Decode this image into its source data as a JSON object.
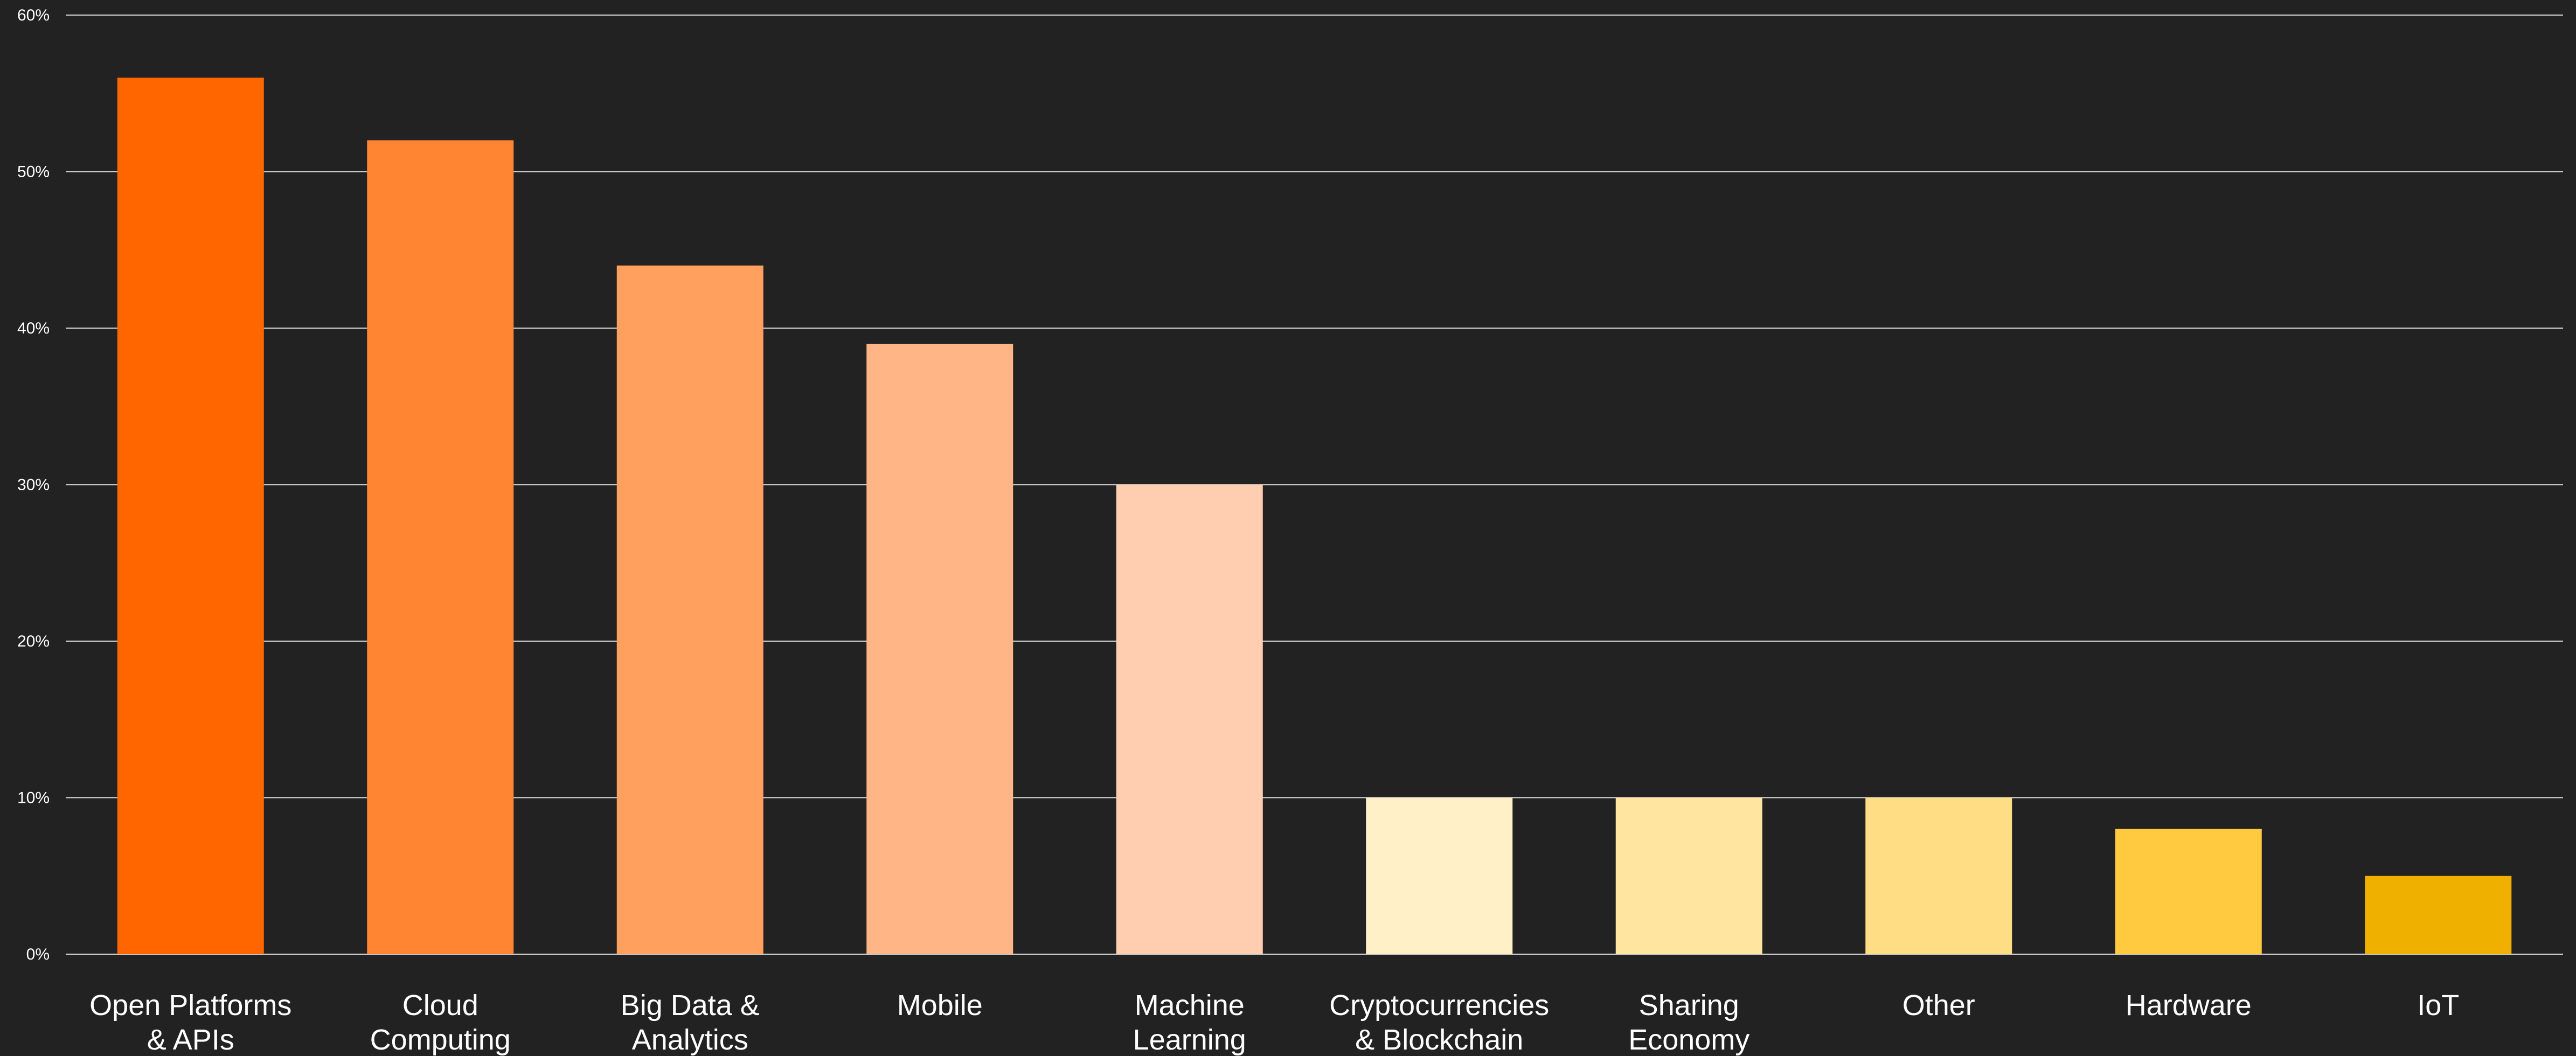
{
  "chart_data": {
    "type": "bar",
    "title": "",
    "xlabel": "",
    "ylabel": "",
    "ylim": [
      0,
      60
    ],
    "yticks": [
      "0%",
      "10%",
      "20%",
      "30%",
      "40%",
      "50%",
      "60%"
    ],
    "y_unit": "%",
    "grid": true,
    "legend": "none",
    "categories": [
      [
        "Open Platforms",
        "& APIs"
      ],
      [
        "Cloud",
        "Computing"
      ],
      [
        "Big Data &",
        "Analytics"
      ],
      [
        "Mobile"
      ],
      [
        "Machine",
        "Learning"
      ],
      [
        "Cryptocurrencies",
        "& Blockchain"
      ],
      [
        "Sharing",
        "Economy"
      ],
      [
        "Other"
      ],
      [
        "Hardware"
      ],
      [
        "IoT"
      ]
    ],
    "values": [
      56,
      52,
      44,
      39,
      30,
      10,
      10,
      10,
      8,
      5
    ],
    "colors": [
      "#ff6600",
      "#ff8533",
      "#ffa05e",
      "#ffb585",
      "#ffcdb0",
      "#fff0c8",
      "#ffe5a0",
      "#ffdd85",
      "#ffca40",
      "#f0b000"
    ],
    "background": "#222222",
    "grid_color": "#d8d8d8",
    "text_color": "#ffffff"
  }
}
